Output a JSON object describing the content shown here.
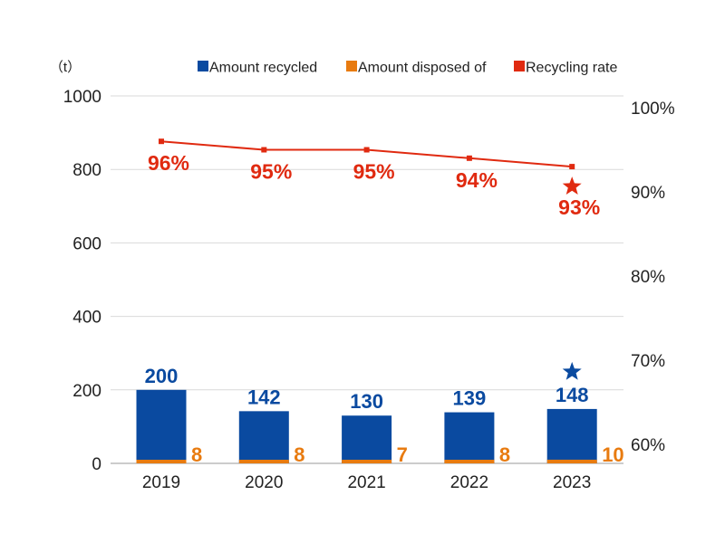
{
  "chart_data": {
    "type": "bar",
    "categories": [
      "2019",
      "2020",
      "2021",
      "2022",
      "2023"
    ],
    "unit_label": "（t）",
    "ylim_left": [
      0,
      1000
    ],
    "yticks_left": [
      "0",
      "200",
      "400",
      "600",
      "800",
      "1000"
    ],
    "ylim_right": [
      60,
      100
    ],
    "yticks_right": [
      "60%",
      "70%",
      "80%",
      "90%",
      "100%"
    ],
    "grid": true,
    "legend_position": "top-right",
    "series": [
      {
        "name": "Amount recycled",
        "type": "bar",
        "stack": "total",
        "color": "#0a4aa0",
        "values": [
          200,
          142,
          130,
          139,
          148
        ],
        "labels": [
          "200",
          "142",
          "130",
          "139",
          "148"
        ]
      },
      {
        "name": "Amount disposed of",
        "type": "bar",
        "stack": "total",
        "color": "#e87b10",
        "values": [
          8,
          8,
          7,
          8,
          10
        ],
        "labels": [
          "8",
          "8",
          "7",
          "8",
          "10"
        ]
      },
      {
        "name": "Recycling rate",
        "type": "line",
        "axis": "right",
        "color": "#e02a10",
        "values": [
          96,
          95,
          95,
          94,
          93
        ],
        "labels": [
          "96%",
          "95%",
          "95%",
          "94%",
          "93%"
        ]
      }
    ],
    "annotations": [
      {
        "category": "2023",
        "marker": "star",
        "series": "Amount recycled",
        "color": "#0a4aa0"
      },
      {
        "category": "2023",
        "marker": "star",
        "series": "Recycling rate",
        "color": "#e02a10"
      }
    ]
  }
}
